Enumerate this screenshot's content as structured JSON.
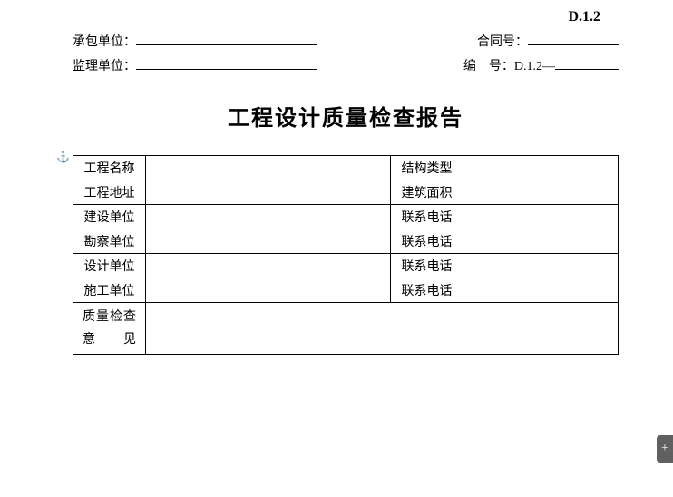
{
  "docNumber": "D.1.2",
  "header": {
    "contractorLabel": "承包单位：",
    "contractorValue": "",
    "supervisorLabel": "监理单位：",
    "supervisorValue": "",
    "contractNoLabel": "合同号：",
    "contractNoValue": "",
    "serialLabel": "编　号：",
    "serialPrefix": "D.1.2—",
    "serialValue": ""
  },
  "title": "工程设计质量检查报告",
  "rows": [
    {
      "label1": "工程名称",
      "value1": "",
      "label2": "结构类型",
      "value2": ""
    },
    {
      "label1": "工程地址",
      "value1": "",
      "label2": "建筑面积",
      "value2": ""
    },
    {
      "label1": "建设单位",
      "value1": "",
      "label2": "联系电话",
      "value2": ""
    },
    {
      "label1": "勘察单位",
      "value1": "",
      "label2": "联系电话",
      "value2": ""
    },
    {
      "label1": "设计单位",
      "value1": "",
      "label2": "联系电话",
      "value2": ""
    },
    {
      "label1": "施工单位",
      "value1": "",
      "label2": "联系电话",
      "value2": ""
    }
  ],
  "opinion": {
    "line1a": "质",
    "line1b": "量",
    "line1c": "检",
    "line1d": "查",
    "line2a": "意",
    "line2b": "见",
    "value": ""
  },
  "colors": {
    "text": "#000000",
    "background": "#ffffff",
    "border": "#000000",
    "widget": "#606060"
  }
}
